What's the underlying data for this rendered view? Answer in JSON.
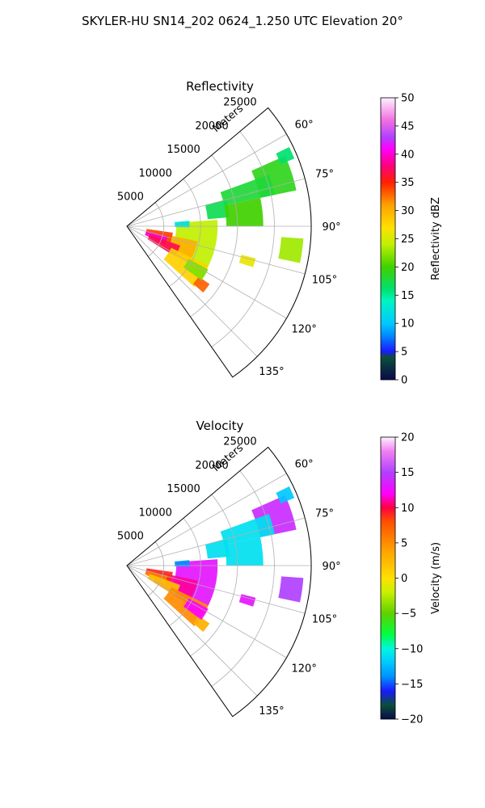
{
  "figure": {
    "title": "SKYLER-HU  SN14_202  0624_1.250 UTC Elevation 20°"
  },
  "colors": {
    "axis": "#000000",
    "grid": "#b0b0b0",
    "background": "#ffffff"
  },
  "chart_data": [
    {
      "type": "heatmap",
      "projection": "polar-sector",
      "title": "Reflectivity",
      "range_label": "Meters",
      "range_ticks": [
        "5000",
        "10000",
        "15000",
        "20000",
        "25000"
      ],
      "range_tick_values": [
        5000,
        10000,
        15000,
        20000,
        25000
      ],
      "rlim": [
        0,
        25000
      ],
      "azimuth_range_deg": [
        50,
        145
      ],
      "azimuth_ticks": [
        "60°",
        "75°",
        "90°",
        "105°",
        "120°",
        "135°"
      ],
      "azimuth_tick_values": [
        60,
        75,
        90,
        105,
        120,
        135
      ],
      "grid": true,
      "colorbar": {
        "label": "Reflectivity dBZ",
        "range": [
          0,
          50
        ],
        "ticks": [
          "0",
          "5",
          "10",
          "15",
          "20",
          "25",
          "30",
          "35",
          "40",
          "45",
          "50"
        ],
        "tick_values": [
          0,
          5,
          10,
          15,
          20,
          25,
          30,
          35,
          40,
          45,
          50
        ],
        "stops": [
          [
            0,
            "#0a0a4a"
          ],
          [
            4,
            "#0b4f3a"
          ],
          [
            5,
            "#1a1aff"
          ],
          [
            8,
            "#0090ff"
          ],
          [
            10,
            "#00c8ff"
          ],
          [
            14,
            "#00f5c0"
          ],
          [
            16,
            "#00e070"
          ],
          [
            20,
            "#40d000"
          ],
          [
            24,
            "#c0f000"
          ],
          [
            27,
            "#ffe000"
          ],
          [
            31,
            "#ffa000"
          ],
          [
            35,
            "#ff2000"
          ],
          [
            38,
            "#ff0080"
          ],
          [
            41,
            "#ff00ff"
          ],
          [
            43,
            "#b040ff"
          ],
          [
            46,
            "#f070e0"
          ],
          [
            50,
            "#fff0ff"
          ]
        ]
      },
      "echo_regions": [
        {
          "az": 72,
          "r": 21000,
          "da": 6,
          "dr": 2500,
          "value": 19
        },
        {
          "az": 74,
          "r": 17000,
          "da": 4,
          "dr": 3500,
          "value": 18
        },
        {
          "az": 66,
          "r": 23500,
          "da": 2,
          "dr": 1000,
          "value": 16
        },
        {
          "az": 80,
          "r": 12500,
          "da": 5,
          "dr": 1500,
          "value": 17
        },
        {
          "az": 84,
          "r": 16000,
          "da": 6,
          "dr": 2500,
          "value": 20
        },
        {
          "az": 98,
          "r": 22500,
          "da": 4,
          "dr": 1500,
          "value": 23
        },
        {
          "az": 106,
          "r": 17000,
          "da": 2,
          "dr": 1000,
          "value": 26
        },
        {
          "az": 102,
          "r": 9500,
          "da": 16,
          "dr": 2800,
          "value": 24
        },
        {
          "az": 112,
          "r": 7000,
          "da": 10,
          "dr": 2800,
          "value": 30
        },
        {
          "az": 104,
          "r": 4500,
          "da": 6,
          "dr": 1800,
          "value": 34
        },
        {
          "az": 110,
          "r": 4200,
          "da": 6,
          "dr": 1500,
          "value": 40
        },
        {
          "az": 116,
          "r": 5500,
          "da": 6,
          "dr": 2200,
          "value": 37
        },
        {
          "az": 124,
          "r": 9500,
          "da": 8,
          "dr": 2800,
          "value": 28
        },
        {
          "az": 128,
          "r": 12800,
          "da": 3,
          "dr": 900,
          "value": 33
        },
        {
          "az": 122,
          "r": 11000,
          "da": 4,
          "dr": 1500,
          "value": 22
        },
        {
          "az": 88,
          "r": 7500,
          "da": 3,
          "dr": 1000,
          "value": 12
        }
      ]
    },
    {
      "type": "heatmap",
      "projection": "polar-sector",
      "title": "Velocity",
      "range_label": "Meters",
      "range_ticks": [
        "5000",
        "10000",
        "15000",
        "20000",
        "25000"
      ],
      "range_tick_values": [
        5000,
        10000,
        15000,
        20000,
        25000
      ],
      "rlim": [
        0,
        25000
      ],
      "azimuth_range_deg": [
        50,
        145
      ],
      "azimuth_ticks": [
        "60°",
        "75°",
        "90°",
        "105°",
        "120°",
        "135°"
      ],
      "azimuth_tick_values": [
        60,
        75,
        90,
        105,
        120,
        135
      ],
      "grid": true,
      "colorbar": {
        "label": "Velocity (m/s)",
        "range": [
          -20,
          20
        ],
        "ticks": [
          "−20",
          "−15",
          "−10",
          "−5",
          "0",
          "5",
          "10",
          "15",
          "20"
        ],
        "tick_values": [
          -20,
          -15,
          -10,
          -5,
          0,
          5,
          10,
          15,
          20
        ],
        "stops": [
          [
            -20,
            "#0a0a4a"
          ],
          [
            -18,
            "#0b4f3a"
          ],
          [
            -16,
            "#1a1aff"
          ],
          [
            -14,
            "#0090ff"
          ],
          [
            -12,
            "#00c8ff"
          ],
          [
            -10,
            "#00f5e0"
          ],
          [
            -8,
            "#00ff40"
          ],
          [
            -5,
            "#60d000"
          ],
          [
            -2,
            "#c8f000"
          ],
          [
            0,
            "#ffe000"
          ],
          [
            4,
            "#ffa000"
          ],
          [
            8,
            "#ff5000"
          ],
          [
            10,
            "#ff0040"
          ],
          [
            12,
            "#ff00ff"
          ],
          [
            15,
            "#b040ff"
          ],
          [
            18,
            "#f080f0"
          ],
          [
            20,
            "#fff0ff"
          ]
        ]
      },
      "echo_regions": [
        {
          "az": 72,
          "r": 21000,
          "da": 6,
          "dr": 2500,
          "value": 14
        },
        {
          "az": 74,
          "r": 17000,
          "da": 4,
          "dr": 3500,
          "value": -11
        },
        {
          "az": 66,
          "r": 23500,
          "da": 2,
          "dr": 1000,
          "value": -12
        },
        {
          "az": 80,
          "r": 12500,
          "da": 5,
          "dr": 1500,
          "value": -11
        },
        {
          "az": 84,
          "r": 16000,
          "da": 6,
          "dr": 2500,
          "value": -11
        },
        {
          "az": 98,
          "r": 22500,
          "da": 4,
          "dr": 1500,
          "value": 15
        },
        {
          "az": 106,
          "r": 17000,
          "da": 2,
          "dr": 1000,
          "value": 13
        },
        {
          "az": 102,
          "r": 9500,
          "da": 16,
          "dr": 2800,
          "value": 13
        },
        {
          "az": 112,
          "r": 7000,
          "da": 10,
          "dr": 2800,
          "value": 11
        },
        {
          "az": 104,
          "r": 4500,
          "da": 6,
          "dr": 1800,
          "value": 9
        },
        {
          "az": 110,
          "r": 4200,
          "da": 6,
          "dr": 1500,
          "value": 6
        },
        {
          "az": 116,
          "r": 5500,
          "da": 6,
          "dr": 2200,
          "value": 2
        },
        {
          "az": 124,
          "r": 9500,
          "da": 8,
          "dr": 2800,
          "value": 5
        },
        {
          "az": 128,
          "r": 12800,
          "da": 3,
          "dr": 900,
          "value": 3
        },
        {
          "az": 122,
          "r": 11000,
          "da": 4,
          "dr": 1500,
          "value": 12
        },
        {
          "az": 88,
          "r": 7500,
          "da": 3,
          "dr": 1000,
          "value": -14
        }
      ]
    }
  ]
}
